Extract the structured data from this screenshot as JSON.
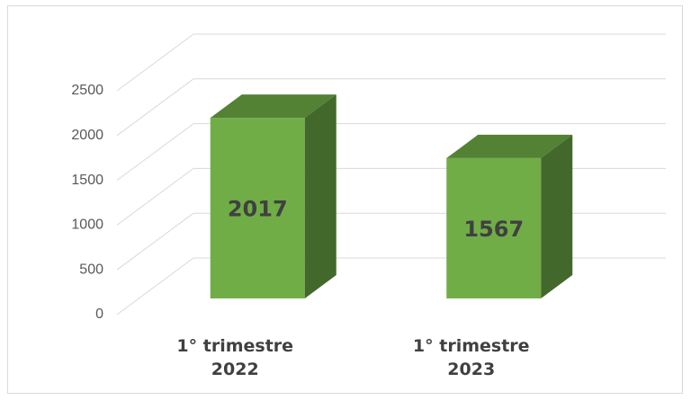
{
  "chart_data": {
    "type": "bar3d",
    "categories": [
      "1° trimestre 2022",
      "1° trimestre 2023"
    ],
    "values": [
      2017,
      1567
    ],
    "color": "#70ad47",
    "ylim": [
      0,
      2500
    ],
    "yticks": [
      0,
      500,
      1000,
      1500,
      2000,
      2500
    ],
    "grid": true
  }
}
